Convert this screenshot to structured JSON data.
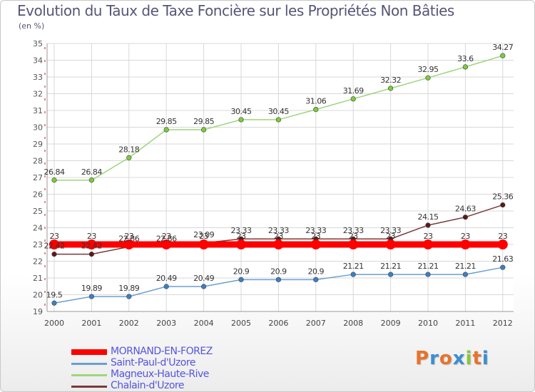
{
  "title": "Evolution du Taux de Taxe Foncière sur les Propriétés Non Bâties",
  "subtitle": "(en %)",
  "brand": {
    "letters": [
      "P",
      "r",
      "o",
      "x",
      "i",
      "t",
      "i"
    ],
    "colors": [
      "#e8732a",
      "#3a8fd0",
      "#e8732a",
      "#3a8fd0",
      "#8cc63f",
      "#e8732a",
      "#3a8fd0"
    ]
  },
  "chart_data": {
    "type": "line",
    "title": "Evolution du Taux de Taxe Foncière sur les Propriétés Non Bâties",
    "ylabel": "(en %)",
    "xlabel": "",
    "x": [
      "2000",
      "2001",
      "2002",
      "2003",
      "2004",
      "2005",
      "2006",
      "2007",
      "2008",
      "2009",
      "2010",
      "2011",
      "2012"
    ],
    "ylim": [
      19,
      35
    ],
    "yticks": [
      "19",
      "20",
      "21",
      "22",
      "23",
      "24",
      "25",
      "26",
      "27",
      "28",
      "29",
      "30",
      "31",
      "32",
      "33",
      "34",
      "35"
    ],
    "grid": true,
    "legend_position": "bottom-left",
    "series": [
      {
        "name": "MORNAND-EN-FOREZ",
        "color": "#ff0000",
        "marker": "#ff0000",
        "values": [
          23,
          23,
          23,
          23,
          23,
          23,
          23,
          23,
          23,
          23,
          23,
          23,
          23
        ],
        "labels": [
          "23",
          "23",
          "23",
          "23",
          "23",
          "23",
          "23",
          "23",
          "23",
          "23",
          "23",
          "23",
          "23"
        ]
      },
      {
        "name": "Saint-Paul-d'Uzore",
        "color": "#6a9fd0",
        "marker": "#3d7fc4",
        "values": [
          19.5,
          19.89,
          19.89,
          20.49,
          20.49,
          20.9,
          20.9,
          20.9,
          21.21,
          21.21,
          21.21,
          21.21,
          21.63
        ],
        "labels": [
          "19.5",
          "19.89",
          "19.89",
          "20.49",
          "20.49",
          "20.9",
          "20.9",
          "20.9",
          "21.21",
          "21.21",
          "21.21",
          "21.21",
          "21.63"
        ]
      },
      {
        "name": "Magneux-Haute-Rive",
        "color": "#9ed67c",
        "marker": "#7ccc3c",
        "values": [
          26.84,
          26.84,
          28.18,
          29.85,
          29.85,
          30.45,
          30.45,
          31.06,
          31.69,
          32.32,
          32.95,
          33.6,
          34.27
        ],
        "labels": [
          "26.84",
          "26.84",
          "28.18",
          "29.85",
          "29.85",
          "30.45",
          "30.45",
          "31.06",
          "31.69",
          "32.32",
          "32.95",
          "33.6",
          "34.27"
        ]
      },
      {
        "name": "Chalain-d'Uzore",
        "color": "#7a3a3a",
        "marker": "#5a1a1a",
        "values": [
          22.42,
          22.42,
          22.86,
          22.86,
          23.09,
          23.33,
          23.33,
          23.33,
          23.33,
          23.33,
          24.15,
          24.63,
          25.36
        ],
        "labels": [
          "22.42",
          "22.42",
          "22.86",
          "22.86",
          "23.09",
          "23.33",
          "23.33",
          "23.33",
          "23.33",
          "23.33",
          "24.15",
          "24.63",
          "25.36"
        ]
      }
    ]
  }
}
